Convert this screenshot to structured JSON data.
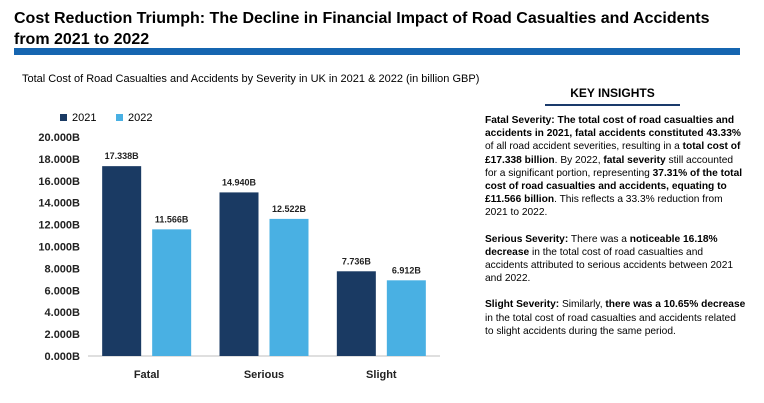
{
  "title": "Cost Reduction Triumph: The Decline in Financial Impact of Road Casualties and Accidents from 2021 to 2022",
  "colors": {
    "series_2021": "#1a3a63",
    "series_2022": "#49b0e3",
    "title_bar": "#1565b0"
  },
  "chart_data": {
    "type": "bar",
    "title": "Total Cost of Road Casualties and Accidents by Severity in UK in 2021 & 2022 (in billion GBP)",
    "categories": [
      "Fatal",
      "Serious",
      "Slight"
    ],
    "series": [
      {
        "name": "2021",
        "values": [
          17.338,
          14.94,
          7.736
        ],
        "labels": [
          "17.338B",
          "14.940B",
          "7.736B"
        ]
      },
      {
        "name": "2022",
        "values": [
          11.566,
          12.522,
          6.912
        ],
        "labels": [
          "11.566B",
          "12.522B",
          "6.912B"
        ]
      }
    ],
    "yticks": [
      "0.000B",
      "2.000B",
      "4.000B",
      "6.000B",
      "8.000B",
      "10.000B",
      "12.000B",
      "14.000B",
      "16.000B",
      "18.000B",
      "20.000B"
    ],
    "ylim": [
      0,
      20
    ],
    "xlabel": "",
    "ylabel": "",
    "legend_position": "top-left"
  },
  "insights": {
    "heading": "KEY INSIGHTS",
    "fatal": {
      "p1_bold": "Fatal Severity: The total cost of road casualties and accidents in 2021, fatal accidents constituted 43.33%",
      "p2": " of all road accident severities, resulting in a ",
      "p3_bold": "total cost of £17.338 billion",
      "p4": ". By 2022, ",
      "p5_bold": "fatal severity",
      "p6": " still accounted for a significant portion, representing ",
      "p7_bold": "37.31% of the total cost of road casualties and accidents, equating to £11.566 billion",
      "p8": ". This reflects a 33.3% reduction from 2021 to 2022."
    },
    "serious": {
      "p1_bold": "Serious Severity:",
      "p2": " There was a ",
      "p3_bold": "noticeable 16.18% decrease",
      "p4": " in the total cost of road casualties and accidents attributed to serious accidents between 2021 and 2022."
    },
    "slight": {
      "p1_bold": "Slight Severity:",
      "p2": " Similarly, ",
      "p3_bold": "there was a 10.65% decrease",
      "p4": " in the total cost of road casualties and accidents related to slight accidents during the same period."
    }
  }
}
